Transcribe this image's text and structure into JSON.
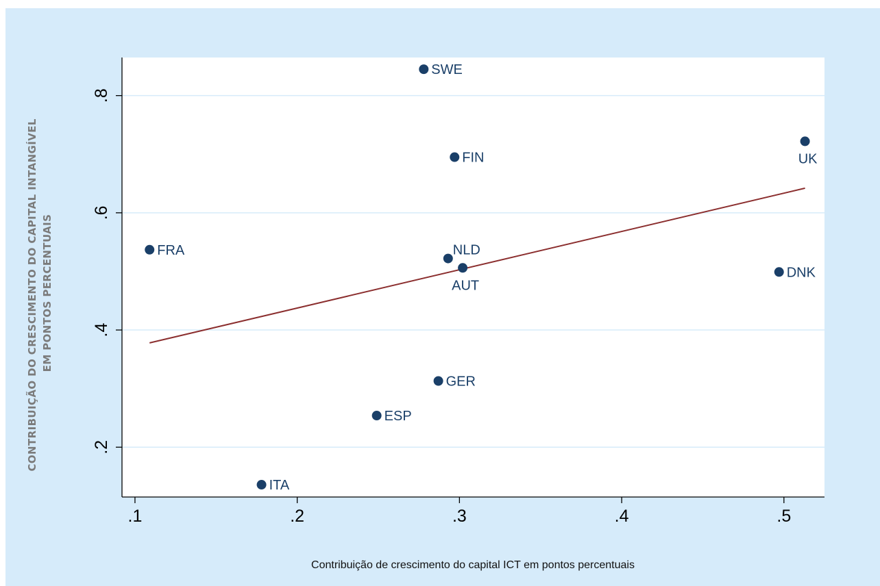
{
  "colors": {
    "background": "#d6ebfa",
    "plot_area": "#ffffff",
    "points": "#1a3f68",
    "fit_line": "#8b2e2e",
    "gridlines": "#d6ebfa"
  },
  "chart_data": {
    "type": "scatter",
    "title": "",
    "xlabel": "Contribuição de crescimento do capital ICT em pontos percentuais",
    "ylabel_lines": [
      "CONTRIBUIÇÃO DO CRESCIMENTO DO CAPITAL INTANGÍVEL",
      "EM PONTOS PERCENTUAIS"
    ],
    "xlim": [
      0.092,
      0.525
    ],
    "ylim": [
      0.115,
      0.865
    ],
    "x_ticks": [
      0.1,
      0.2,
      0.3,
      0.4,
      0.5
    ],
    "x_tick_labels": [
      ".1",
      ".2",
      ".3",
      ".4",
      ".5"
    ],
    "y_ticks": [
      0.2,
      0.4,
      0.6,
      0.8
    ],
    "y_tick_labels": [
      ".2",
      ".4",
      ".6",
      ".8"
    ],
    "grid": "horizontal",
    "legend": "none",
    "points": [
      {
        "label": "SWE",
        "x": 0.278,
        "y": 0.845,
        "label_pos": "right"
      },
      {
        "label": "FIN",
        "x": 0.297,
        "y": 0.695,
        "label_pos": "right"
      },
      {
        "label": "UK",
        "x": 0.513,
        "y": 0.722,
        "label_pos": "below"
      },
      {
        "label": "FRA",
        "x": 0.109,
        "y": 0.537,
        "label_pos": "right"
      },
      {
        "label": "NLD",
        "x": 0.293,
        "y": 0.522,
        "label_pos": "above-right"
      },
      {
        "label": "AUT",
        "x": 0.302,
        "y": 0.506,
        "label_pos": "below"
      },
      {
        "label": "DNK",
        "x": 0.497,
        "y": 0.499,
        "label_pos": "right"
      },
      {
        "label": "GER",
        "x": 0.287,
        "y": 0.313,
        "label_pos": "right"
      },
      {
        "label": "ESP",
        "x": 0.249,
        "y": 0.254,
        "label_pos": "right"
      },
      {
        "label": "ITA",
        "x": 0.178,
        "y": 0.136,
        "label_pos": "right"
      }
    ],
    "fit_line": {
      "x": [
        0.109,
        0.513
      ],
      "y": [
        0.378,
        0.642
      ]
    }
  }
}
